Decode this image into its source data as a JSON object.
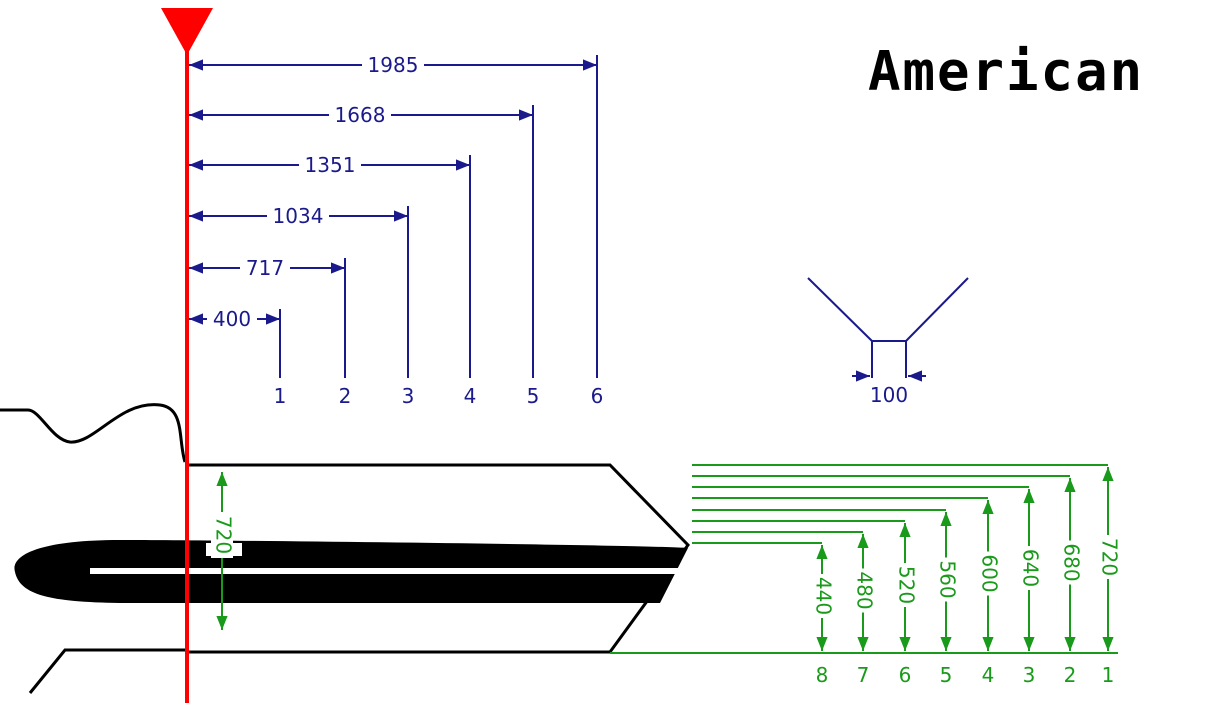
{
  "title": "American",
  "colors": {
    "reference": "#ff0000",
    "spacing": "#1a1a8c",
    "depth": "#1a9a1a",
    "outline": "#000000"
  },
  "spacing": {
    "distances": [
      "400",
      "717",
      "1034",
      "1351",
      "1668",
      "1985"
    ],
    "cut_numbers": [
      "1",
      "2",
      "3",
      "4",
      "5",
      "6"
    ],
    "tip_width": "100"
  },
  "depths": {
    "blade_height": "720",
    "values": [
      "720",
      "680",
      "640",
      "600",
      "560",
      "520",
      "480",
      "440"
    ],
    "numbers": [
      "1",
      "2",
      "3",
      "4",
      "5",
      "6",
      "7",
      "8"
    ]
  }
}
